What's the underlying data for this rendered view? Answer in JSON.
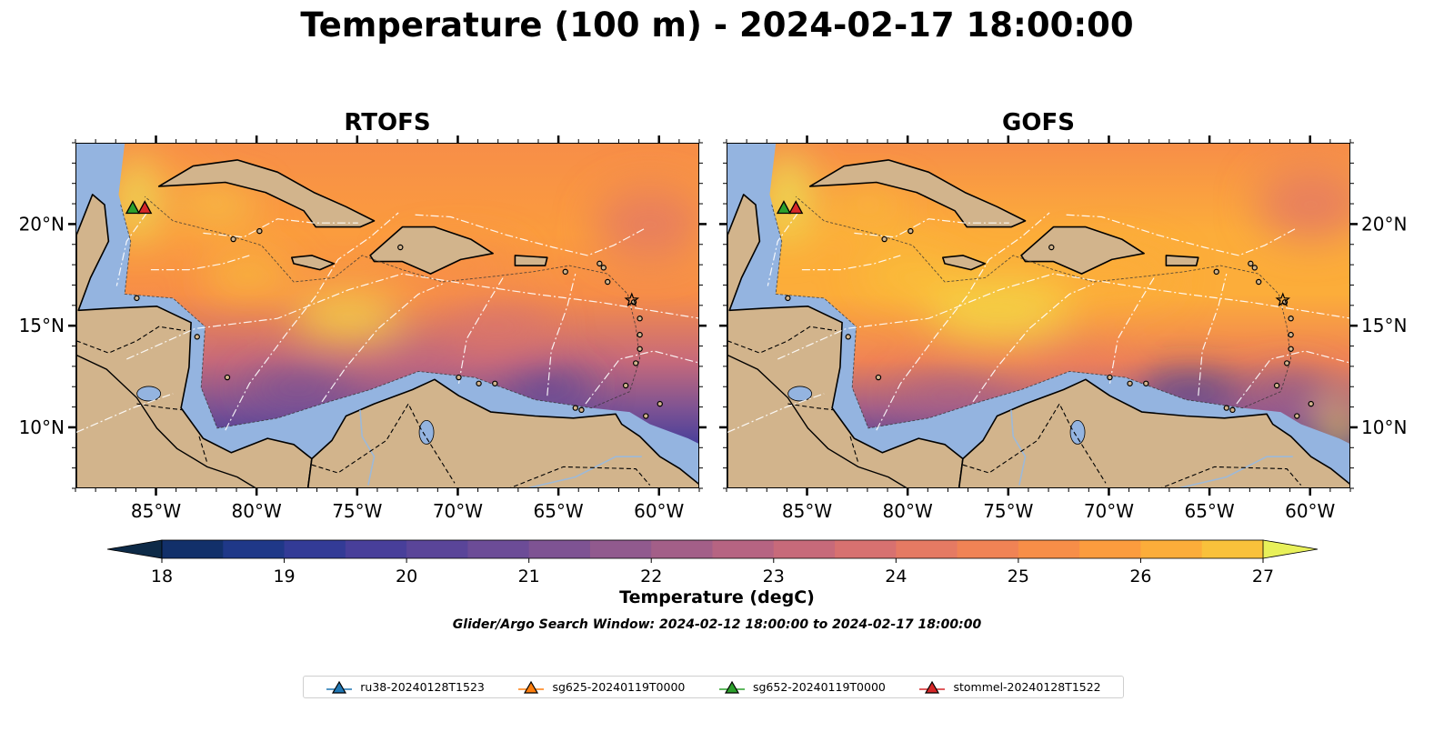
{
  "title": "Temperature (100 m) - 2024-02-17 18:00:00",
  "panels": [
    {
      "title": "RTOFS"
    },
    {
      "title": "GOFS"
    }
  ],
  "map_extent": {
    "lon": [
      -89,
      -58
    ],
    "lat": [
      7,
      24
    ]
  },
  "lon_ticks": [
    {
      "lon": -85,
      "label": "85°W"
    },
    {
      "lon": -80,
      "label": "80°W"
    },
    {
      "lon": -75,
      "label": "75°W"
    },
    {
      "lon": -70,
      "label": "70°W"
    },
    {
      "lon": -65,
      "label": "65°W"
    },
    {
      "lon": -60,
      "label": "60°W"
    }
  ],
  "lat_ticks": [
    {
      "lat": 20,
      "label": "20°N"
    },
    {
      "lat": 15,
      "label": "15°N"
    },
    {
      "lat": 10,
      "label": "10°N"
    }
  ],
  "colorbar": {
    "label": "Temperature (degC)",
    "min": 18,
    "max": 27,
    "step": 0.5,
    "ticks": [
      "18",
      "19",
      "20",
      "21",
      "22",
      "23",
      "24",
      "25",
      "26",
      "27"
    ],
    "extend": "both",
    "colors": [
      "#0d2a47",
      "#12306a",
      "#1f3888",
      "#333b96",
      "#483f9a",
      "#5a4599",
      "#6c4c97",
      "#7e5393",
      "#915a8e",
      "#a35f88",
      "#b66482",
      "#c76a7a",
      "#d77170",
      "#e57a63",
      "#f08355",
      "#f78e48",
      "#fb9c3e",
      "#fcad3a",
      "#f9c13b",
      "#f3d646",
      "#e8f05a"
    ]
  },
  "search_window": "Glider/Argo Search Window: 2024-02-12 18:00:00 to 2024-02-17 18:00:00",
  "legend": [
    {
      "label": "ru38-20240128T1523",
      "color": "#1f77b4"
    },
    {
      "label": "sg625-20240119T0000",
      "color": "#ff7f0e"
    },
    {
      "label": "sg652-20240119T0000",
      "color": "#2ca02c"
    },
    {
      "label": "stommel-20240128T1522",
      "color": "#d62728"
    }
  ],
  "gliders": [
    {
      "name": "sg652-20240119T0000",
      "lon": -86.2,
      "lat": 20.8,
      "color": "#2ca02c"
    },
    {
      "name": "stommel-20240128T1522",
      "lon": -85.6,
      "lat": 20.8,
      "color": "#d62728"
    }
  ],
  "land_color": "#d2b48c",
  "shelf_color": "#94b4e0",
  "deep_pacific_color": "#0b2237"
}
